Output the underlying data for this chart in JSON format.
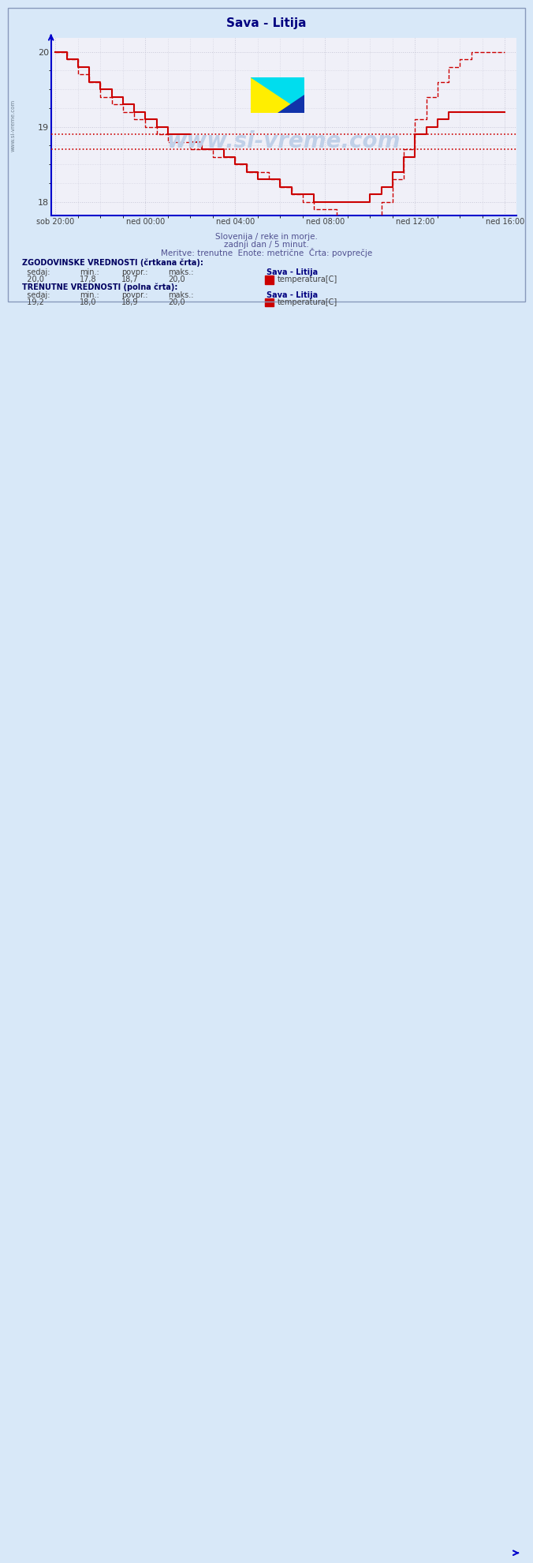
{
  "title": "Sava - Litija",
  "title_color": "#000080",
  "bg_color": "#d8e8f8",
  "plot_bg_color": "#f0f0f8",
  "grid_color": "#c8c8d8",
  "x_label_color": "#404040",
  "y_label_color": "#404040",
  "axis_color": "#0000cc",
  "x_ticks_labels": [
    "sob 20:00",
    "ned 00:00",
    "ned 04:00",
    "ned 08:00",
    "ned 12:00",
    "ned 16:00"
  ],
  "x_ticks_pos": [
    0,
    4,
    8,
    12,
    16,
    20
  ],
  "ylim": [
    17.82,
    20.18
  ],
  "xlim": [
    -0.2,
    20.5
  ],
  "yticks": [
    18,
    19,
    20
  ],
  "avg_line1": 18.7,
  "avg_line2": 18.9,
  "watermark": "www.si-vreme.com",
  "subtitle1": "Slovenija / reke in morje.",
  "subtitle2": "zadnji dan / 5 minut.",
  "subtitle3": "Meritve: trenutne  Enote: metrične  Črta: povprečje",
  "legend_title1": "ZGODOVINSKE VREDNOSTI (črtkana črta):",
  "legend_row1_labels": [
    "sedaj:",
    "min.:",
    "povpr.:",
    "maks.:"
  ],
  "legend_vals1": [
    "20,0",
    "17,8",
    "18,7",
    "20,0"
  ],
  "legend_series1": "Sava - Litija",
  "legend_meas1": "temperatura[C]",
  "legend_title2": "TRENUTNE VREDNOSTI (polna črta):",
  "legend_row2_labels": [
    "sedaj:",
    "min.:",
    "povpr.:",
    "maks.:"
  ],
  "legend_vals2": [
    "19,2",
    "18,0",
    "18,9",
    "20,0"
  ],
  "legend_series2": "Sava - Litija",
  "legend_meas2": "temperatura[C]",
  "line_color": "#cc0000",
  "left_label": "www.si-vreme.com"
}
